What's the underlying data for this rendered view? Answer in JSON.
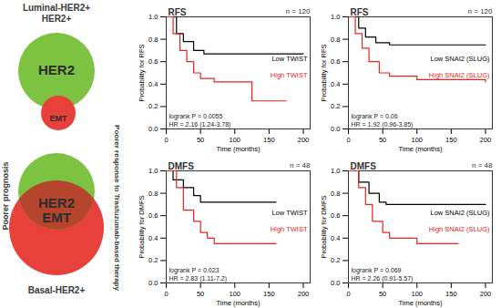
{
  "diagram": {
    "top_label": [
      "Luminal-HER2+",
      "HER2+"
    ],
    "top_circles": [
      "HER2",
      "EMT"
    ],
    "bottom_circles": [
      "HER2",
      "EMT"
    ],
    "bottom_label": "Basal-HER2+",
    "left_note": "Poorer prognosis",
    "right_note": "Poorer response to Trastuzumab-based therapy"
  },
  "chart_data": [
    {
      "type": "step",
      "title": "RFS",
      "subtitle": "n = 120",
      "x_label": "Time (months)",
      "y_label": "Probability for RFS",
      "xlim": [
        0,
        210
      ],
      "xticks": [
        0,
        50,
        100,
        150,
        200
      ],
      "ylim": [
        0,
        1
      ],
      "yticks": [
        {
          "value": 0,
          "label": "0.0"
        },
        {
          "value": 0.2,
          "label": "0.2"
        },
        {
          "value": 0.4,
          "label": "0.4"
        },
        {
          "value": 0.6,
          "label": "0.6"
        },
        {
          "value": 0.8,
          "label": "0.8"
        },
        {
          "value": 1,
          "label": "1.0"
        }
      ],
      "legend": "right",
      "annotations": [
        "logrank P = 0.0055",
        "HR = 2.16 (1.24-3.78)"
      ],
      "series": [
        {
          "name": "Low TWIST",
          "color": "#000000",
          "x": [
            0,
            15,
            25,
            40,
            55,
            200
          ],
          "values": [
            1,
            0.85,
            0.78,
            0.7,
            0.67,
            0.67
          ]
        },
        {
          "name": "High TWIST",
          "color": "#e8231e",
          "x": [
            0,
            10,
            20,
            30,
            40,
            50,
            70,
            125,
            175
          ],
          "values": [
            1,
            0.85,
            0.7,
            0.6,
            0.5,
            0.45,
            0.42,
            0.25,
            0.25
          ]
        }
      ]
    },
    {
      "type": "step",
      "title": "RFS",
      "subtitle": "n = 120",
      "x_label": "Time (months)",
      "y_label": "Probability for RFS",
      "xlim": [
        0,
        210
      ],
      "xticks": [
        0,
        50,
        100,
        150,
        200
      ],
      "ylim": [
        0,
        1
      ],
      "yticks": [
        {
          "value": 0,
          "label": "0.0"
        },
        {
          "value": 0.2,
          "label": "0.2"
        },
        {
          "value": 0.4,
          "label": "0.4"
        },
        {
          "value": 0.6,
          "label": "0.6"
        },
        {
          "value": 0.8,
          "label": "0.8"
        },
        {
          "value": 1,
          "label": "1.0"
        }
      ],
      "legend": "right",
      "annotations": [
        "logrank P = 0.06",
        "HR = 1.92 (0.96-3.85)"
      ],
      "series": [
        {
          "name": "Low SNAI2 (SLUG)",
          "color": "#000000",
          "x": [
            0,
            15,
            25,
            40,
            60,
            200
          ],
          "values": [
            1,
            0.9,
            0.82,
            0.77,
            0.75,
            0.75
          ]
        },
        {
          "name": "High SNAI2 (SLUG)",
          "color": "#e8231e",
          "x": [
            0,
            10,
            20,
            30,
            45,
            60,
            100,
            200
          ],
          "values": [
            1,
            0.85,
            0.72,
            0.6,
            0.5,
            0.47,
            0.44,
            0.42
          ]
        }
      ]
    },
    {
      "type": "step",
      "title": "DMFS",
      "subtitle": "n = 48",
      "x_label": "Time (months)",
      "y_label": "Probability for DMFS",
      "xlim": [
        0,
        210
      ],
      "xticks": [
        0,
        50,
        100,
        150,
        200
      ],
      "ylim": [
        0,
        1
      ],
      "yticks": [
        {
          "value": 0,
          "label": "0.0"
        },
        {
          "value": 0.2,
          "label": "0.2"
        },
        {
          "value": 0.4,
          "label": "0.4"
        },
        {
          "value": 0.6,
          "label": "0.6"
        },
        {
          "value": 0.8,
          "label": "0.8"
        },
        {
          "value": 1,
          "label": "1.0"
        }
      ],
      "legend": "right",
      "annotations": [
        "logrank P = 0.023",
        "HR = 2.83 (1.11-7.2)"
      ],
      "series": [
        {
          "name": "Low TWIST",
          "color": "#000000",
          "x": [
            0,
            10,
            25,
            40,
            50,
            160
          ],
          "values": [
            1,
            0.92,
            0.85,
            0.78,
            0.72,
            0.72
          ]
        },
        {
          "name": "High TWIST",
          "color": "#e8231e",
          "x": [
            0,
            15,
            25,
            40,
            50,
            60,
            70,
            160
          ],
          "values": [
            1,
            0.85,
            0.65,
            0.55,
            0.45,
            0.4,
            0.35,
            0.35
          ]
        }
      ]
    },
    {
      "type": "step",
      "title": "DMFS",
      "subtitle": "n = 48",
      "x_label": "Time (months)",
      "y_label": "Probability for DMFS",
      "xlim": [
        0,
        210
      ],
      "xticks": [
        0,
        50,
        100,
        150,
        200
      ],
      "ylim": [
        0,
        1
      ],
      "yticks": [
        {
          "value": 0,
          "label": "0.0"
        },
        {
          "value": 0.2,
          "label": "0.2"
        },
        {
          "value": 0.4,
          "label": "0.4"
        },
        {
          "value": 0.6,
          "label": "0.6"
        },
        {
          "value": 0.8,
          "label": "0.8"
        },
        {
          "value": 1,
          "label": "1.0"
        }
      ],
      "legend": "right",
      "annotations": [
        "logrank P = 0.069",
        "HR = 2.26 (0.91-5.57)"
      ],
      "series": [
        {
          "name": "Low SNAI2 (SLUG)",
          "color": "#000000",
          "x": [
            0,
            15,
            30,
            45,
            55,
            200
          ],
          "values": [
            1,
            0.9,
            0.8,
            0.72,
            0.7,
            0.7
          ]
        },
        {
          "name": "High SNAI2 (SLUG)",
          "color": "#e8231e",
          "x": [
            0,
            15,
            25,
            35,
            50,
            60,
            100,
            160
          ],
          "values": [
            1,
            0.85,
            0.7,
            0.55,
            0.45,
            0.4,
            0.35,
            0.35
          ]
        }
      ]
    }
  ]
}
